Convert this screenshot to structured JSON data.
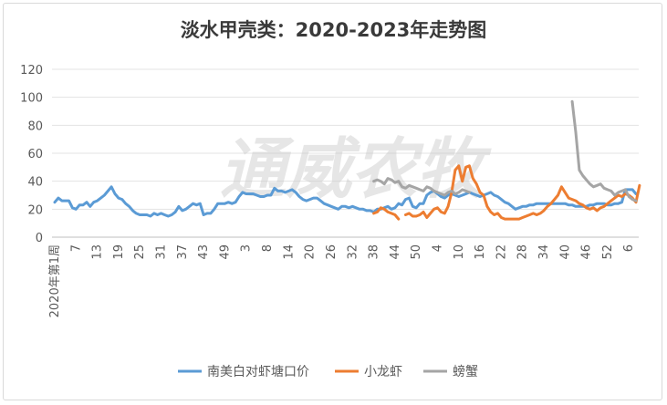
{
  "chart_data": {
    "type": "line",
    "title": "淡水甲壳类：2020-2023年走势图",
    "watermark": "通威农牧",
    "xlabel": "",
    "ylabel": "",
    "ylim": [
      0,
      120
    ],
    "y_ticks": [
      "0",
      "20",
      "40",
      "60",
      "80",
      "100",
      "120"
    ],
    "x_tick_labels": [
      "2020年第1周",
      "7",
      "13",
      "19",
      "25",
      "31",
      "37",
      "43",
      "49",
      "3",
      "8",
      "14",
      "20",
      "26",
      "32",
      "38",
      "44",
      "50",
      "4",
      "10",
      "16",
      "22",
      "28",
      "34",
      "40",
      "46",
      "52",
      "6"
    ],
    "x_count": 165,
    "grid": "horizontal",
    "legend_position": "bottom",
    "series": [
      {
        "name": "南美白对虾塘口价",
        "color": "#5b9bd5",
        "start_index": 0,
        "values": [
          25,
          28,
          26,
          26,
          26,
          21,
          20,
          23,
          23,
          25,
          22,
          25,
          26,
          28,
          30,
          33,
          36,
          31,
          28,
          27,
          24,
          22,
          19,
          17,
          16,
          16,
          16,
          15,
          17,
          16,
          17,
          16,
          15,
          16,
          18,
          22,
          19,
          20,
          22,
          24,
          23,
          24,
          16,
          17,
          17,
          20,
          24,
          24,
          24,
          25,
          24,
          25,
          29,
          32,
          31,
          31,
          31,
          30,
          29,
          29,
          30,
          30,
          35,
          33,
          33,
          32,
          33,
          34,
          32,
          29,
          27,
          26,
          27,
          28,
          28,
          26,
          24,
          23,
          22,
          21,
          20,
          22,
          22,
          21,
          22,
          21,
          20,
          20,
          19,
          19,
          18,
          20,
          20,
          21,
          22,
          20,
          21,
          24,
          23,
          27,
          28,
          22,
          21,
          24,
          24,
          30,
          32,
          33,
          31,
          29,
          28,
          30,
          31,
          30,
          29,
          30,
          31,
          32,
          31,
          30,
          29,
          30,
          31,
          32,
          30,
          29,
          27,
          25,
          24,
          22,
          20,
          21,
          22,
          22,
          23,
          23,
          24,
          24,
          24,
          24,
          24,
          24,
          24,
          24,
          24,
          23,
          23,
          22,
          22,
          22,
          22,
          23,
          23,
          24,
          24,
          24,
          23,
          23,
          24,
          24,
          25,
          34,
          34,
          34,
          31
        ]
      },
      {
        "name": "小龙虾",
        "color": "#ed7d31",
        "start_index": 90,
        "values": [
          17,
          18,
          21,
          20,
          18,
          17,
          16,
          13,
          null,
          16,
          17,
          15,
          15,
          16,
          18,
          14,
          17,
          20,
          21,
          18,
          17,
          22,
          32,
          48,
          51,
          40,
          50,
          51,
          42,
          38,
          32,
          30,
          22,
          18,
          16,
          17,
          14,
          13,
          13,
          13,
          13,
          13,
          14,
          15,
          16,
          17,
          16,
          17,
          19,
          22,
          24,
          27,
          30,
          36,
          32,
          28,
          27,
          26,
          24,
          23,
          21,
          20,
          21,
          19,
          21,
          22,
          24,
          26,
          28,
          30,
          29,
          31,
          30,
          28,
          25,
          37
        ]
      },
      {
        "name": "螃蟹",
        "color": "#a5a5a5",
        "start_index": 90,
        "values": [
          40,
          41,
          40,
          38,
          42,
          41,
          39,
          40,
          36,
          35,
          37,
          36,
          35,
          34,
          33,
          36,
          35,
          33,
          32,
          31,
          30,
          32,
          33,
          31,
          32,
          34,
          33,
          32,
          null,
          null,
          null,
          null,
          null,
          null,
          null,
          null,
          null,
          null,
          null,
          null,
          null,
          null,
          null,
          null,
          null,
          null,
          null,
          null,
          null,
          null,
          null,
          null,
          null,
          null,
          null,
          null,
          97,
          75,
          48,
          44,
          41,
          38,
          36,
          37,
          38,
          35,
          34,
          33,
          30,
          32,
          33,
          34,
          29,
          27,
          26
        ]
      }
    ]
  }
}
